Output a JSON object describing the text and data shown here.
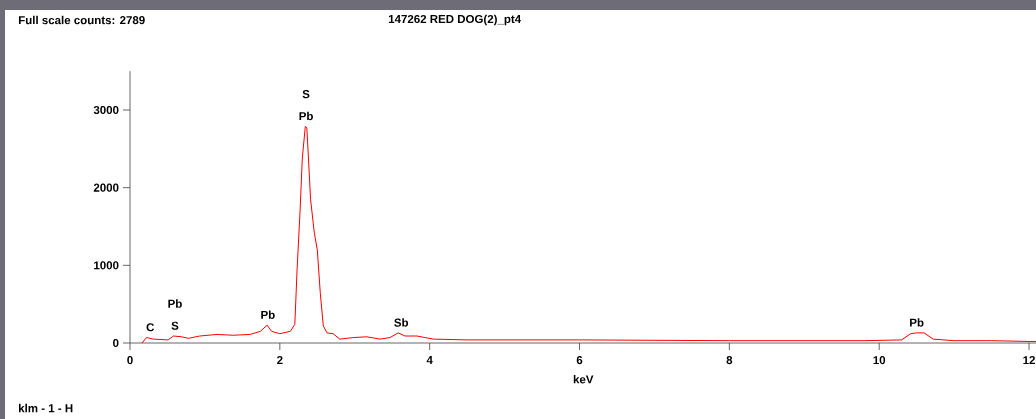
{
  "chart_data": {
    "type": "line",
    "title": "147262 RED DOG(2)_pt4",
    "xlabel": "keV",
    "x": [
      0.16,
      0.22,
      0.31,
      0.51,
      0.58,
      0.69,
      0.78,
      0.93,
      1.16,
      1.38,
      1.6,
      1.74,
      1.83,
      1.89,
      2.0,
      2.14,
      2.2,
      2.23,
      2.27,
      2.3,
      2.34,
      2.36,
      2.38,
      2.41,
      2.46,
      2.5,
      2.54,
      2.58,
      2.63,
      2.71,
      2.8,
      2.98,
      3.16,
      3.34,
      3.47,
      3.58,
      3.67,
      3.83,
      3.94,
      4.05,
      4.5,
      6,
      8,
      9.8,
      10.3,
      10.42,
      10.5,
      10.6,
      10.72,
      11,
      11.5,
      12,
      12.1
    ],
    "series": [
      {
        "color": "#ff0000",
        "values": [
          0,
          70,
          50,
          40,
          90,
          80,
          60,
          90,
          110,
          100,
          110,
          150,
          230,
          150,
          120,
          150,
          240,
          940,
          1700,
          2380,
          2789,
          2770,
          2420,
          1850,
          1420,
          1200,
          640,
          220,
          130,
          120,
          50,
          70,
          80,
          50,
          70,
          130,
          90,
          90,
          70,
          50,
          40,
          40,
          30,
          30,
          40,
          120,
          130,
          130,
          50,
          30,
          30,
          20,
          20
        ]
      }
    ],
    "xlim": [
      0,
      12.1
    ],
    "ylim": [
      0,
      3500
    ],
    "xticks": [
      0,
      2,
      4,
      6,
      8,
      10,
      12
    ],
    "yticks": [
      0,
      1000,
      2000,
      3000
    ],
    "grid": false,
    "marker": "none",
    "line_style": "solid",
    "annotations": [
      "Full scale counts: 2789",
      "klm - 1 - H",
      {
        "text": "C",
        "x": 0.27,
        "y": 70
      },
      {
        "text": "S",
        "x": 0.6,
        "y": 90
      },
      {
        "text": "Pb",
        "x": 0.6,
        "y": 90
      },
      {
        "text": "Pb",
        "x": 1.84,
        "y": 230
      },
      {
        "text": "Pb",
        "x": 2.35,
        "y": 2789
      },
      {
        "text": "S",
        "x": 2.35,
        "y": 2789
      },
      {
        "text": "Sb",
        "x": 3.62,
        "y": 130
      },
      {
        "text": "Pb",
        "x": 10.5,
        "y": 130
      }
    ]
  }
}
